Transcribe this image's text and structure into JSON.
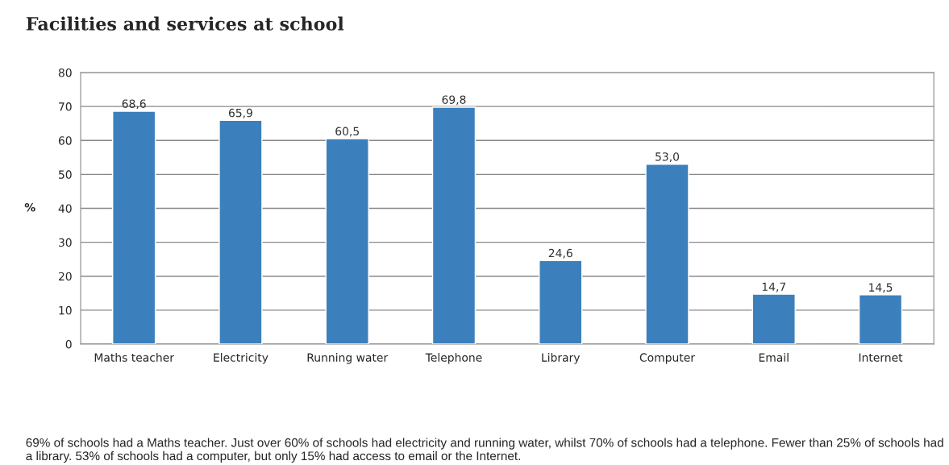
{
  "chart_data": {
    "type": "bar",
    "title": "Facilities and services at school",
    "ylabel": "%",
    "categories": [
      "Maths teacher",
      "Electricity",
      "Running water",
      "Telephone",
      "Library",
      "Computer",
      "Email",
      "Internet"
    ],
    "values": [
      68.6,
      65.9,
      60.5,
      69.8,
      24.6,
      53.0,
      14.7,
      14.5
    ],
    "value_labels": [
      "68,6",
      "65,9",
      "60,5",
      "69,8",
      "24,6",
      "53,0",
      "14,7",
      "14,5"
    ],
    "color": "#3b80bd",
    "ylim": [
      0,
      80
    ],
    "yticks": [
      0,
      10,
      20,
      30,
      40,
      50,
      60,
      70,
      80
    ],
    "grid": "y",
    "legend": false,
    "annotations": [
      "69% of schools had a Maths teacher. Just over 60% of schools had electricity and running water, whilst 70% of schools had a telephone. Fewer than 25% of schools had a library. 53% of schools had a computer, but only 15% had access to email or the Internet."
    ]
  }
}
